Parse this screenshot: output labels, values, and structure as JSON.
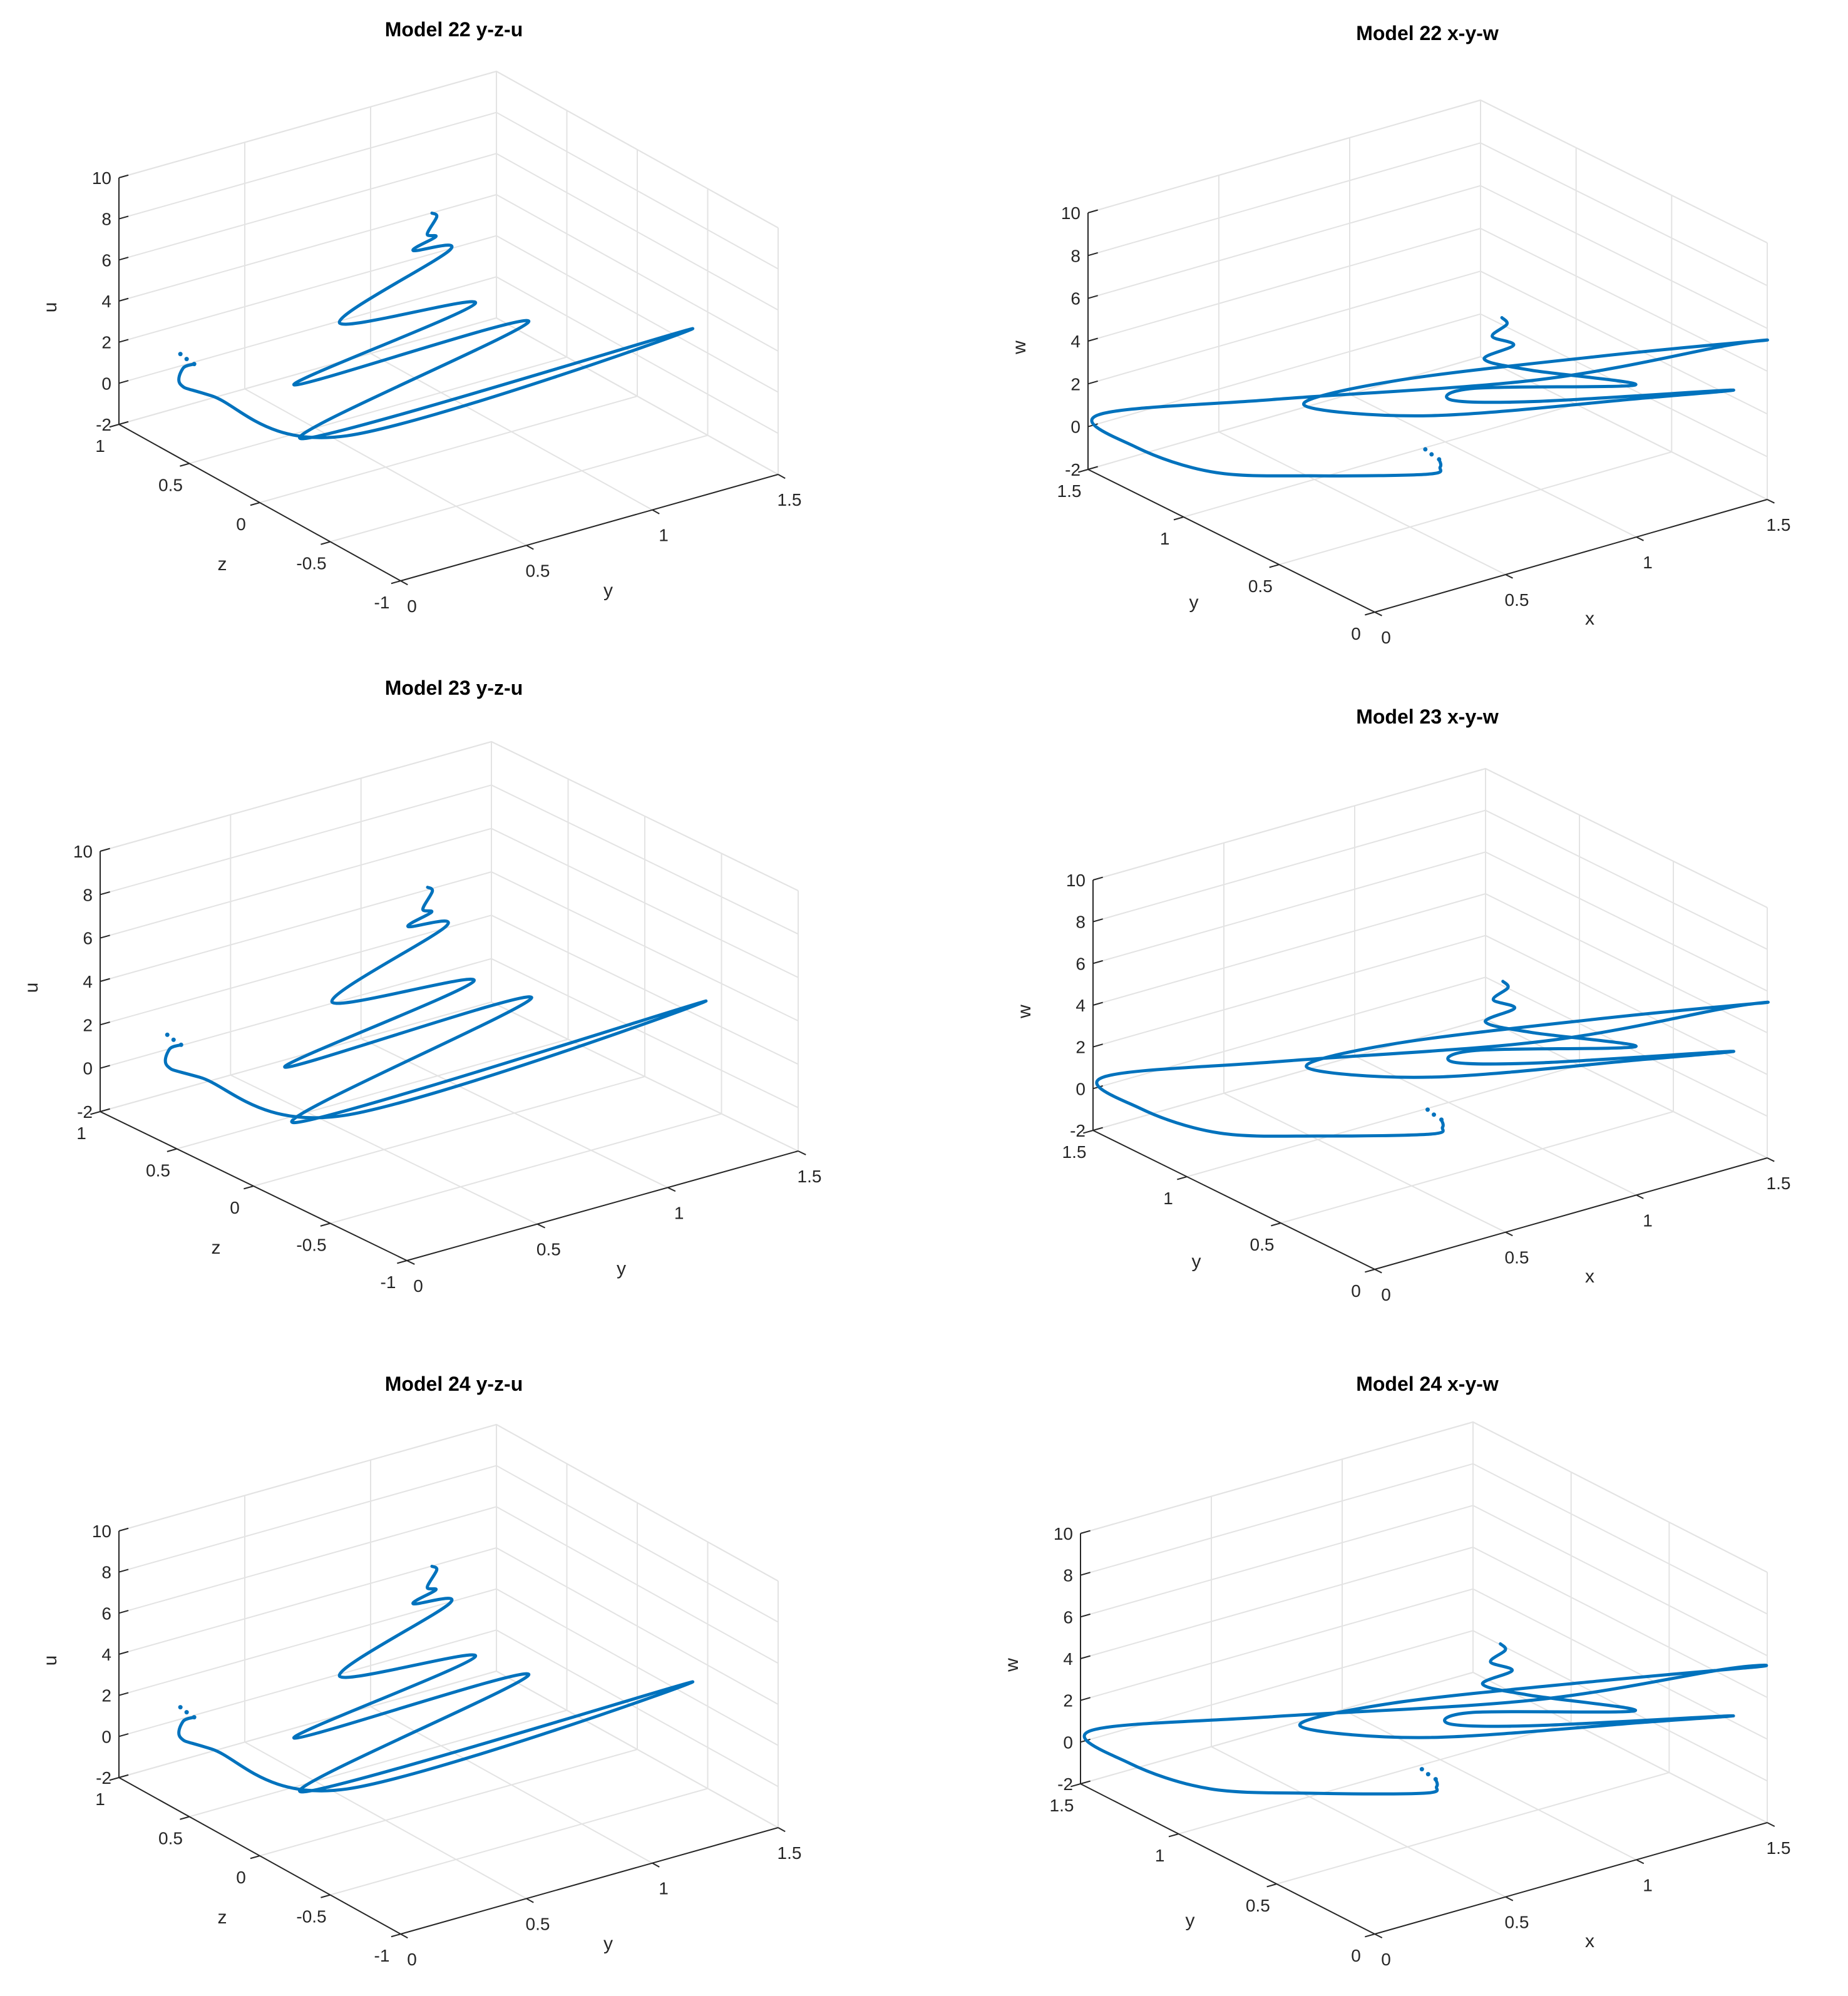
{
  "chart_data": [
    {
      "type": "line3d",
      "title": "Model 22 y-z-u",
      "variant": "yzu",
      "xlabel": "y",
      "ylabel": "z",
      "zlabel": "u",
      "xlim": [
        0,
        1.5
      ],
      "ylim": [
        -1,
        1
      ],
      "zlim": [
        -2,
        10
      ],
      "xticks": [
        "0",
        "0.5",
        "1",
        "1.5"
      ],
      "yticks": [
        "-1",
        "-0.5",
        "0",
        "0.5",
        "1"
      ],
      "zticks": [
        "-2",
        "0",
        "2",
        "4",
        "6",
        "8",
        "10"
      ],
      "series_color": "#0072bd",
      "grid": true
    },
    {
      "type": "line3d",
      "title": "Model 22 x-y-w",
      "variant": "xyw",
      "xlabel": "x",
      "ylabel": "y",
      "zlabel": "w",
      "xlim": [
        0,
        1.5
      ],
      "ylim": [
        0,
        1.5
      ],
      "zlim": [
        -2,
        10
      ],
      "xticks": [
        "0",
        "0.5",
        "1",
        "1.5"
      ],
      "yticks": [
        "0",
        "0.5",
        "1",
        "1.5"
      ],
      "zticks": [
        "-2",
        "0",
        "2",
        "4",
        "6",
        "8",
        "10"
      ],
      "series_color": "#0072bd",
      "grid": true
    },
    {
      "type": "line3d",
      "title": "Model 23 y-z-u",
      "variant": "yzu",
      "xlabel": "y",
      "ylabel": "z",
      "zlabel": "u",
      "xlim": [
        0,
        1.5
      ],
      "ylim": [
        -1,
        1
      ],
      "zlim": [
        -2,
        10
      ],
      "xticks": [
        "0",
        "0.5",
        "1",
        "1.5"
      ],
      "yticks": [
        "-1",
        "-0.5",
        "0",
        "0.5",
        "1"
      ],
      "zticks": [
        "-2",
        "0",
        "2",
        "4",
        "6",
        "8",
        "10"
      ],
      "series_color": "#0072bd",
      "grid": true
    },
    {
      "type": "line3d",
      "title": "Model 23 x-y-w",
      "variant": "xyw",
      "xlabel": "x",
      "ylabel": "y",
      "zlabel": "w",
      "xlim": [
        0,
        1.5
      ],
      "ylim": [
        0,
        1.5
      ],
      "zlim": [
        -2,
        10
      ],
      "xticks": [
        "0",
        "0.5",
        "1",
        "1.5"
      ],
      "yticks": [
        "0",
        "0.5",
        "1",
        "1.5"
      ],
      "zticks": [
        "-2",
        "0",
        "2",
        "4",
        "6",
        "8",
        "10"
      ],
      "series_color": "#0072bd",
      "grid": true
    },
    {
      "type": "line3d",
      "title": "Model 24 y-z-u",
      "variant": "yzu",
      "xlabel": "y",
      "ylabel": "z",
      "zlabel": "u",
      "xlim": [
        0,
        1.5
      ],
      "ylim": [
        -1,
        1
      ],
      "zlim": [
        -2,
        10
      ],
      "xticks": [
        "0",
        "0.5",
        "1",
        "1.5"
      ],
      "yticks": [
        "-1",
        "-0.5",
        "0",
        "0.5",
        "1"
      ],
      "zticks": [
        "-2",
        "0",
        "2",
        "4",
        "6",
        "8",
        "10"
      ],
      "series_color": "#0072bd",
      "grid": true
    },
    {
      "type": "line3d",
      "title": "Model 24 x-y-w",
      "variant": "xyw",
      "xlabel": "x",
      "ylabel": "y",
      "zlabel": "w",
      "xlim": [
        0,
        1.5
      ],
      "ylim": [
        0,
        1.5
      ],
      "zlim": [
        -2,
        10
      ],
      "xticks": [
        "0",
        "0.5",
        "1",
        "1.5"
      ],
      "yticks": [
        "0",
        "0.5",
        "1",
        "1.5"
      ],
      "zticks": [
        "-2",
        "0",
        "2",
        "4",
        "6",
        "8",
        "10"
      ],
      "series_color": "#0072bd",
      "grid": true
    }
  ]
}
